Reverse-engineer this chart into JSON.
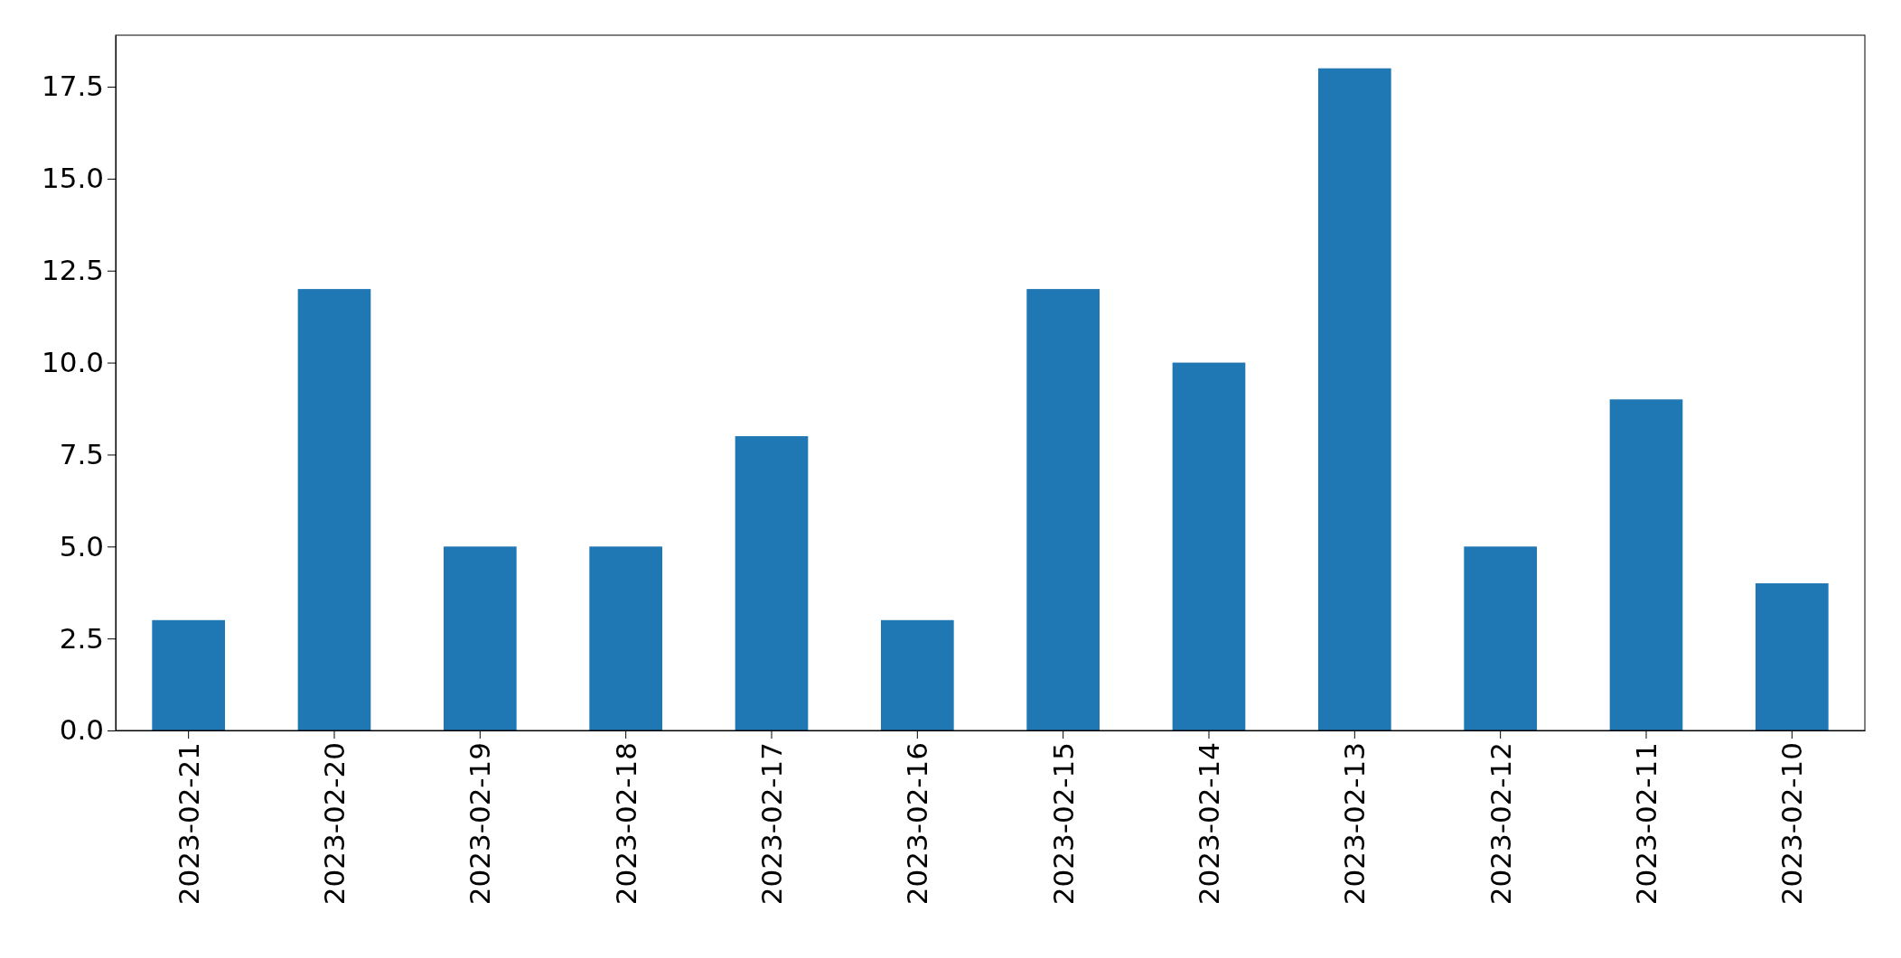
{
  "chart_data": {
    "type": "bar",
    "categories": [
      "2023-02-21",
      "2023-02-20",
      "2023-02-19",
      "2023-02-18",
      "2023-02-17",
      "2023-02-16",
      "2023-02-15",
      "2023-02-14",
      "2023-02-13",
      "2023-02-12",
      "2023-02-11",
      "2023-02-10"
    ],
    "values": [
      3,
      12,
      5,
      5,
      8,
      3,
      12,
      10,
      18,
      5,
      9,
      4
    ],
    "color": "#1f77b4",
    "ylim": [
      0,
      18.9
    ],
    "yticks": [
      {
        "value": 0,
        "label": "0.0"
      },
      {
        "value": 2.5,
        "label": "2.5"
      },
      {
        "value": 5,
        "label": "5.0"
      },
      {
        "value": 7.5,
        "label": "7.5"
      },
      {
        "value": 10,
        "label": "10.0"
      },
      {
        "value": 12.5,
        "label": "12.5"
      },
      {
        "value": 15,
        "label": "15.0"
      },
      {
        "value": 17.5,
        "label": "17.5"
      }
    ],
    "grid": false
  }
}
